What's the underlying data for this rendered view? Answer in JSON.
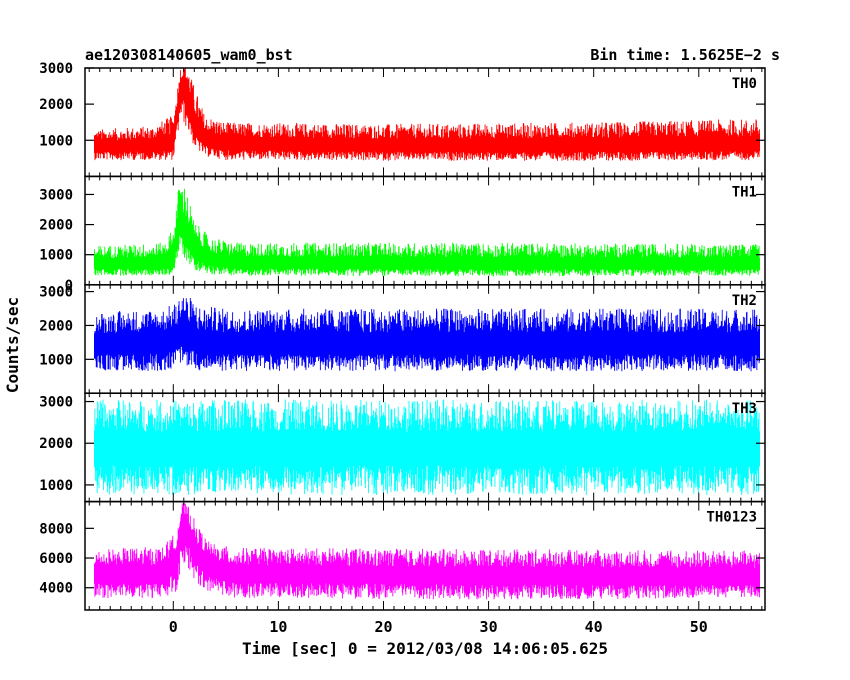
{
  "header": {
    "source_id": "ae120308140605_wam0_bst",
    "bin_time": "Bin time: 1.5625E−2 s"
  },
  "chart_data": {
    "type": "line",
    "xlabel": "Time [sec] 0 = 2012/03/08 14:06:05.625",
    "ylabel": "Counts/sec",
    "xlim": [
      -8.4,
      56.3
    ],
    "x_ticks": [
      0,
      10,
      20,
      30,
      40,
      50
    ],
    "bin_time": 0.015625,
    "panels": [
      {
        "name": "TH0",
        "color": "#ff0000",
        "ylim": [
          0,
          3000
        ],
        "y_ticks": [
          1000,
          2000,
          3000
        ],
        "x": [
          -7.5,
          -2,
          0,
          0.7,
          1.3,
          2,
          3,
          5,
          20,
          40,
          55.8
        ],
        "center": [
          800,
          830,
          900,
          2500,
          2400,
          1400,
          1000,
          880,
          820,
          820,
          830
        ],
        "band_low": [
          450,
          450,
          450,
          1600,
          1300,
          800,
          550,
          450,
          430,
          430,
          450
        ],
        "band_high": [
          1300,
          1400,
          1700,
          3100,
          3100,
          2500,
          1700,
          1500,
          1450,
          1500,
          1600
        ]
      },
      {
        "name": "TH1",
        "color": "#00ff00",
        "ylim": [
          0,
          3600
        ],
        "y_ticks": [
          0,
          1000,
          2000,
          3000
        ],
        "x": [
          -7.5,
          -1,
          0,
          0.6,
          1.2,
          2,
          3.5,
          6,
          30,
          55.8
        ],
        "center": [
          650,
          670,
          800,
          2100,
          1700,
          1100,
          800,
          680,
          650,
          650
        ],
        "band_low": [
          300,
          300,
          350,
          1100,
          800,
          500,
          350,
          300,
          280,
          300
        ],
        "band_high": [
          1300,
          1400,
          1900,
          3500,
          3300,
          2100,
          1600,
          1400,
          1400,
          1350
        ]
      },
      {
        "name": "TH2",
        "color": "#0000ff",
        "ylim": [
          0,
          3200
        ],
        "y_ticks": [
          1000,
          2000,
          3000
        ],
        "x": [
          -7.5,
          -1,
          0.4,
          0.8,
          1.4,
          2.5,
          5,
          55.8
        ],
        "center": [
          1420,
          1450,
          1650,
          1800,
          1600,
          1450,
          1420,
          1420
        ],
        "band_low": [
          650,
          650,
          750,
          900,
          800,
          650,
          650,
          650
        ],
        "band_high": [
          2400,
          2500,
          2700,
          3100,
          2900,
          2600,
          2500,
          2500
        ]
      },
      {
        "name": "TH3",
        "color": "#00ffff",
        "ylim": [
          600,
          3200
        ],
        "y_ticks": [
          1000,
          2000,
          3000
        ],
        "x": [
          -7.5,
          55.8
        ],
        "center": [
          1850,
          1850
        ],
        "band_low": [
          750,
          750
        ],
        "band_high": [
          3050,
          3050
        ]
      },
      {
        "name": "TH0123",
        "color": "#ff00ff",
        "ylim": [
          2500,
          9800
        ],
        "y_ticks": [
          4000,
          6000,
          8000
        ],
        "x": [
          -7.5,
          -1,
          0.3,
          0.8,
          1.4,
          2.2,
          3.5,
          6,
          30,
          55.8
        ],
        "center": [
          4800,
          4850,
          6000,
          8300,
          7800,
          6300,
          5400,
          4900,
          4750,
          4700
        ],
        "band_low": [
          3300,
          3300,
          3700,
          5700,
          5200,
          4300,
          3700,
          3300,
          3200,
          3300
        ],
        "band_high": [
          6600,
          6800,
          7800,
          9800,
          9600,
          8300,
          7000,
          6700,
          6600,
          6500
        ]
      }
    ]
  }
}
